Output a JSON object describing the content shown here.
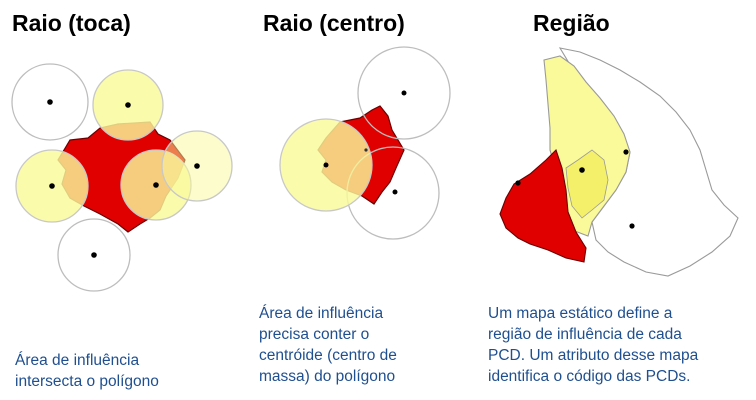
{
  "panels": [
    {
      "title": "Raio (toca)",
      "caption": "Área de influência\nintersecta o polígono"
    },
    {
      "title": "Raio (centro)",
      "caption": "Área de influência\nprecisa conter o\ncentróide (centro de\nmassa) do polígono"
    },
    {
      "title": "Região",
      "caption": "Um mapa estático define a\nregião de influência de cada\nPCD. Um atributo desse mapa\nidentifica o código das PCDs."
    }
  ],
  "colors": {
    "polygon": "#e00000",
    "influence_fill": "#fafa9a",
    "influence_stroke": "#c8c8c8",
    "circle_stroke": "#bdbdbd",
    "point": "#000000",
    "caption_text": "#1f4f8f",
    "region_outline": "#9a9a9a"
  }
}
